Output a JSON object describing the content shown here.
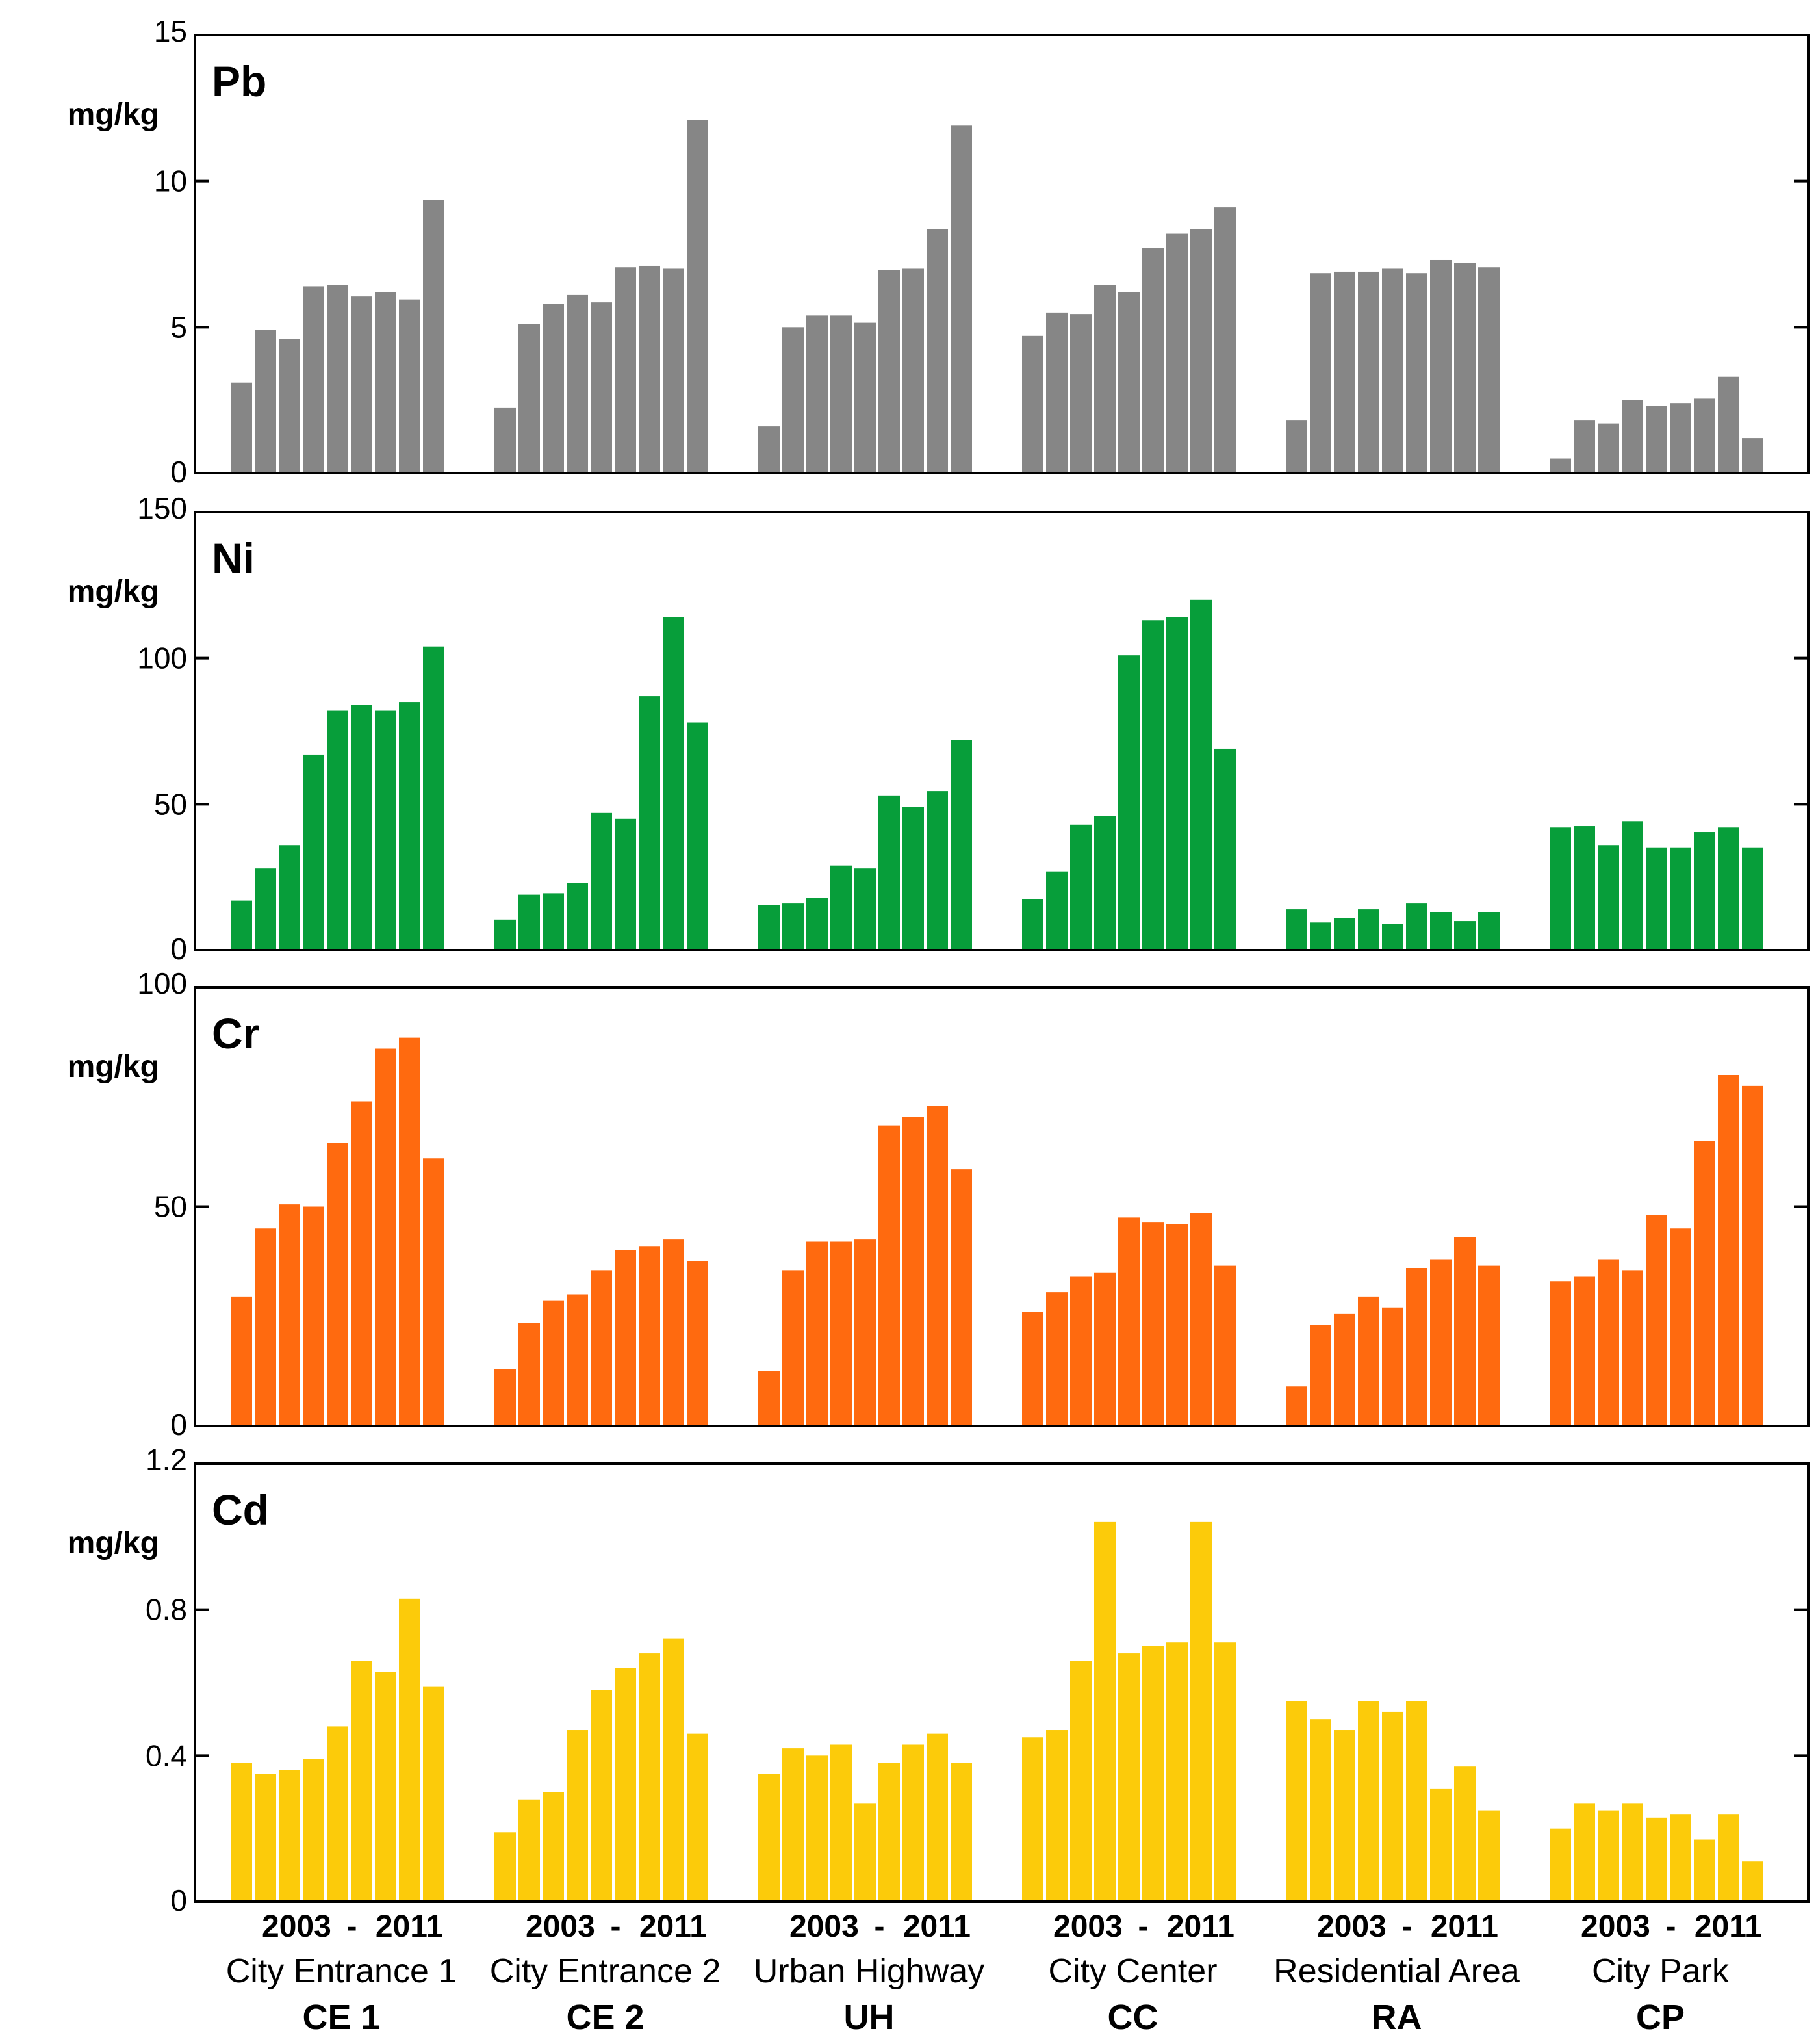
{
  "chart_data": {
    "type": "bar",
    "year_range_labels": {
      "start": "2003",
      "dash": "-",
      "end": "2011"
    },
    "sites": [
      {
        "name": "City Entrance 1",
        "code": "CE 1"
      },
      {
        "name": "City Entrance 2",
        "code": "CE 2"
      },
      {
        "name": "Urban Highway",
        "code": "UH"
      },
      {
        "name": "City Center",
        "code": "CC"
      },
      {
        "name": "Residential Area",
        "code": "RA"
      },
      {
        "name": "City Park",
        "code": "CP"
      }
    ],
    "panels": [
      {
        "id": "pb",
        "title": "Pb",
        "unit": "mg/kg",
        "color": "#868686",
        "ylim": [
          0,
          15
        ],
        "yticks": [
          0,
          5,
          10,
          15
        ],
        "ytick_labels": [
          "0",
          "5",
          "10",
          "15"
        ],
        "values": [
          [
            3.1,
            4.9,
            4.6,
            6.4,
            6.45,
            6.05,
            6.2,
            5.95,
            9.35
          ],
          [
            2.25,
            5.1,
            5.8,
            6.1,
            5.85,
            7.05,
            7.1,
            7.0,
            12.1
          ],
          [
            1.6,
            5.0,
            5.4,
            5.4,
            5.15,
            6.95,
            7.0,
            8.35,
            11.9
          ],
          [
            4.7,
            5.5,
            5.45,
            6.45,
            6.2,
            7.7,
            8.2,
            8.35,
            9.1
          ],
          [
            1.8,
            6.85,
            6.9,
            6.9,
            7.0,
            6.85,
            7.3,
            7.2,
            7.05
          ],
          [
            0.5,
            1.8,
            1.7,
            2.5,
            2.3,
            2.4,
            2.55,
            3.3,
            1.2
          ]
        ]
      },
      {
        "id": "ni",
        "title": "Ni",
        "unit": "mg/kg",
        "color": "#079E3A",
        "ylim": [
          0,
          150
        ],
        "yticks": [
          0,
          50,
          100,
          150
        ],
        "ytick_labels": [
          "0",
          "50",
          "100",
          "150"
        ],
        "values": [
          [
            17,
            28,
            36,
            67,
            82,
            84,
            82,
            85,
            104
          ],
          [
            10.5,
            19,
            19.5,
            23,
            47,
            45,
            87,
            114,
            78
          ],
          [
            15.5,
            16,
            18,
            29,
            28,
            53,
            49,
            54.5,
            72
          ],
          [
            17.5,
            27,
            43,
            46,
            101,
            113,
            114,
            120,
            69
          ],
          [
            14,
            9.5,
            11,
            14,
            9,
            16,
            13,
            10,
            13
          ],
          [
            42,
            42.5,
            36,
            44,
            35,
            35,
            40.5,
            42,
            35
          ]
        ]
      },
      {
        "id": "cr",
        "title": "Cr",
        "unit": "mg/kg",
        "color": "#FF6A0F",
        "ylim": [
          0,
          100
        ],
        "yticks": [
          0,
          50,
          100
        ],
        "ytick_labels": [
          "0",
          "50",
          "100"
        ],
        "values": [
          [
            29.5,
            45,
            50.5,
            50,
            64.5,
            74,
            86,
            88.5,
            61
          ],
          [
            13,
            23.5,
            28.5,
            30,
            35.5,
            40,
            41,
            42.5,
            37.5
          ],
          [
            12.5,
            35.5,
            42,
            42,
            42.5,
            68.5,
            70.5,
            73,
            58.5
          ],
          [
            26,
            30.5,
            34,
            35,
            47.5,
            46.5,
            46,
            48.5,
            36.5
          ],
          [
            9,
            23,
            25.5,
            29.5,
            27,
            36,
            38,
            43,
            36.5
          ],
          [
            33,
            34,
            38,
            35.5,
            48,
            45,
            65,
            80,
            77.5
          ]
        ]
      },
      {
        "id": "cd",
        "title": "Cd",
        "unit": "mg/kg",
        "color": "#FCCB0A",
        "ylim": [
          0,
          1.2
        ],
        "yticks": [
          0,
          0.4,
          0.8,
          1.2
        ],
        "ytick_labels": [
          "0",
          "0.4",
          "0.8",
          "1.2"
        ],
        "values": [
          [
            0.38,
            0.35,
            0.36,
            0.39,
            0.48,
            0.66,
            0.63,
            0.83,
            0.59
          ],
          [
            0.19,
            0.28,
            0.3,
            0.47,
            0.58,
            0.64,
            0.68,
            0.72,
            0.46
          ],
          [
            0.35,
            0.42,
            0.4,
            0.43,
            0.27,
            0.38,
            0.43,
            0.46,
            0.38
          ],
          [
            0.45,
            0.47,
            0.66,
            1.04,
            0.68,
            0.7,
            0.71,
            1.04,
            0.71
          ],
          [
            0.55,
            0.5,
            0.47,
            0.55,
            0.52,
            0.55,
            0.31,
            0.37,
            0.25
          ],
          [
            0.2,
            0.27,
            0.25,
            0.27,
            0.23,
            0.24,
            0.17,
            0.24,
            0.11
          ]
        ]
      }
    ]
  }
}
